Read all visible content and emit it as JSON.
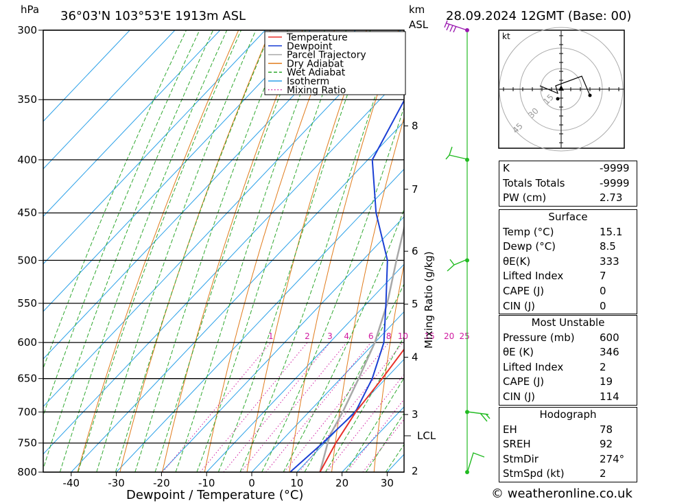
{
  "header": {
    "hpa_unit": "hPa",
    "location": "36°03'N  103°53'E  1913m  ASL",
    "km_unit": "km",
    "asl_label": "ASL",
    "datetime": "28.09.2024  12GMT  (Base: 00)"
  },
  "colors": {
    "temperature": "#e8302a",
    "dewpoint": "#1a3fd4",
    "parcel": "#a8a8a8",
    "dry_adiabat": "#e07a1a",
    "wet_adiabat": "#2fa82f",
    "isotherm": "#2aa0e8",
    "mixing_ratio": "#d01aa0",
    "wind": "#22bb22",
    "wind_top": "#9a1ab0"
  },
  "chart_data": {
    "type": "line",
    "xlabel": "Dewpoint / Temperature (°C)",
    "ylabel": "hPa",
    "y2label": "Mixing Ratio (g/kg)",
    "xlim": [
      -47,
      34
    ],
    "ylim": [
      800,
      300
    ],
    "x_ticks": [
      "-40",
      "-30",
      "-20",
      "-10",
      "0",
      "10",
      "20",
      "30"
    ],
    "x_tick_values": [
      -40,
      -30,
      -20,
      -10,
      0,
      10,
      20,
      30
    ],
    "pressure_ticks": [
      "300",
      "350",
      "400",
      "450",
      "500",
      "550",
      "600",
      "650",
      "700",
      "750",
      "800"
    ],
    "pressure_tick_values": [
      300,
      350,
      400,
      450,
      500,
      550,
      600,
      650,
      700,
      750,
      800
    ],
    "km_ticks": [
      {
        "label": "8",
        "p": 371
      },
      {
        "label": "7",
        "p": 427
      },
      {
        "label": "6",
        "p": 490
      },
      {
        "label": "5",
        "p": 551
      },
      {
        "label": "4",
        "p": 620
      },
      {
        "label": "3",
        "p": 704
      }
    ],
    "lcl": {
      "label": "LCL",
      "p": 738
    },
    "km_bottom": {
      "label": "2",
      "p": 798
    },
    "mixing_ratio_labels": [
      "1",
      "2",
      "3",
      "4",
      "6",
      "8",
      "10",
      "15",
      "20",
      "25"
    ],
    "mixing_ratio_values": [
      1,
      2,
      3,
      4,
      6,
      8,
      10,
      15,
      20,
      25
    ],
    "legend": [
      "Temperature",
      "Dewpoint",
      "Parcel Trajectory",
      "Dry Adiabat",
      "Wet Adiabat",
      "Isotherm",
      "Mixing Ratio"
    ],
    "series": [
      {
        "name": "Temperature",
        "points": [
          [
            800,
            15.1
          ],
          [
            750,
            12.5
          ],
          [
            700,
            10.4
          ],
          [
            650,
            9.2
          ],
          [
            600,
            7.6
          ],
          [
            550,
            5.1
          ],
          [
            500,
            -2.4
          ],
          [
            450,
            -10.0
          ],
          [
            400,
            -19.2
          ],
          [
            350,
            -28.6
          ],
          [
            320,
            -33.0
          ]
        ]
      },
      {
        "name": "Dewpoint",
        "points": [
          [
            800,
            8.5
          ],
          [
            750,
            9.6
          ],
          [
            700,
            10.3
          ],
          [
            650,
            7.0
          ],
          [
            600,
            2.0
          ],
          [
            550,
            -5.8
          ],
          [
            500,
            -14.5
          ],
          [
            450,
            -27.0
          ],
          [
            400,
            -39.0
          ],
          [
            350,
            -44.5
          ],
          [
            300,
            -55.5
          ]
        ]
      },
      {
        "name": "Parcel Trajectory",
        "points": [
          [
            800,
            15.1
          ],
          [
            738,
            9.6
          ],
          [
            700,
            7.5
          ],
          [
            650,
            4.0
          ],
          [
            600,
            0.0
          ],
          [
            550,
            -5.5
          ],
          [
            500,
            -12.5
          ],
          [
            450,
            -20.0
          ],
          [
            400,
            -28.5
          ],
          [
            350,
            -38.0
          ],
          [
            310,
            -47.0
          ]
        ]
      }
    ],
    "wind_barbs_p": [
      300,
      400,
      500,
      700,
      800
    ]
  },
  "hodograph": {
    "unit": "kt",
    "ring_labels": [
      "15",
      "30",
      "45"
    ]
  },
  "indices": {
    "top": [
      {
        "k": "K",
        "v": "-9999"
      },
      {
        "k": "Totals Totals",
        "v": "-9999"
      },
      {
        "k": "PW (cm)",
        "v": "2.73"
      }
    ],
    "surface_title": "Surface",
    "surface": [
      {
        "k": "Temp (°C)",
        "v": "15.1"
      },
      {
        "k": "Dewp (°C)",
        "v": "8.5"
      },
      {
        "k": "θE(K)",
        "v": "333"
      },
      {
        "k": "Lifted Index",
        "v": "7"
      },
      {
        "k": "CAPE (J)",
        "v": "0"
      },
      {
        "k": "CIN (J)",
        "v": "0"
      }
    ],
    "mu_title": "Most Unstable",
    "mu": [
      {
        "k": "Pressure (mb)",
        "v": "600"
      },
      {
        "k": "θE (K)",
        "v": "346"
      },
      {
        "k": "Lifted Index",
        "v": "2"
      },
      {
        "k": "CAPE (J)",
        "v": "19"
      },
      {
        "k": "CIN (J)",
        "v": "114"
      }
    ],
    "hodo_title": "Hodograph",
    "hodo": [
      {
        "k": "EH",
        "v": "78"
      },
      {
        "k": "SREH",
        "v": "92"
      },
      {
        "k": "StmDir",
        "v": "274°"
      },
      {
        "k": "StmSpd (kt)",
        "v": "2"
      }
    ]
  },
  "footer": {
    "copyright": "© weatheronline.co.uk"
  }
}
